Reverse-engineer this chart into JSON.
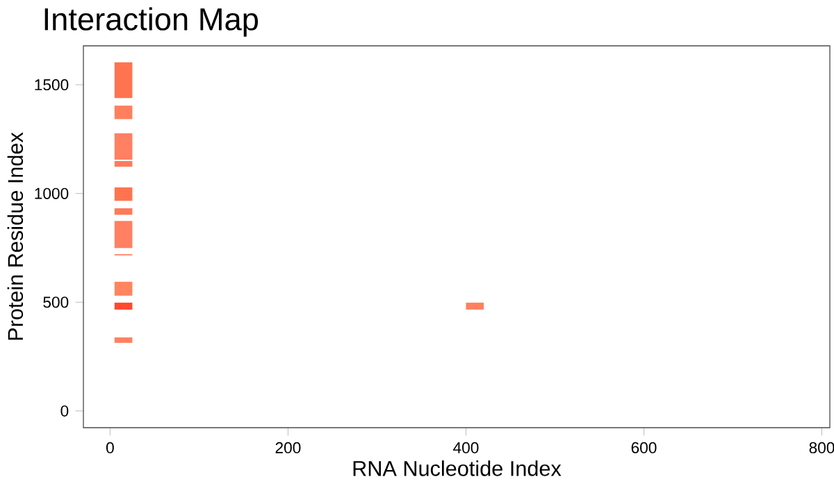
{
  "chart_data": {
    "type": "bar",
    "title": "Interaction Map",
    "xlabel": "RNA Nucleotide Index",
    "ylabel": "Protein Residue Index",
    "x": [
      15,
      410
    ],
    "series": [
      {
        "base": [
          1439,
          null
        ],
        "values": [
          164,
          null
        ],
        "color": "#ff7450"
      },
      {
        "base": [
          1342,
          null
        ],
        "values": [
          62,
          null
        ],
        "color": "#ff7f5e"
      },
      {
        "base": [
          1155,
          null
        ],
        "values": [
          122,
          null
        ],
        "color": "#ff8063"
      },
      {
        "base": [
          1123,
          null
        ],
        "values": [
          26,
          null
        ],
        "color": "#ff7b5a"
      },
      {
        "base": [
          966,
          null
        ],
        "values": [
          62,
          null
        ],
        "color": "#ff7450"
      },
      {
        "base": [
          902,
          null
        ],
        "values": [
          30,
          null
        ],
        "color": "#ff7a58"
      },
      {
        "base": [
          749,
          null
        ],
        "values": [
          125,
          null
        ],
        "color": "#ff8062"
      },
      {
        "base": [
          715,
          null
        ],
        "values": [
          6,
          null
        ],
        "color": "#ff8a6c"
      },
      {
        "base": [
          530,
          null
        ],
        "values": [
          64,
          null
        ],
        "color": "#ff8460"
      },
      {
        "base": [
          466,
          466
        ],
        "values": [
          32,
          32
        ],
        "colors": [
          "#ff4a2e",
          "#ff8060"
        ]
      },
      {
        "base": [
          313,
          null
        ],
        "values": [
          25,
          null
        ],
        "color": "#ff8262"
      }
    ],
    "xlim": [
      -30,
      809
    ],
    "ylim": [
      -77,
      1679
    ],
    "xticks": [
      0,
      200,
      400,
      600,
      800
    ],
    "yticks": [
      0,
      500,
      1000,
      1500
    ],
    "grid": false
  }
}
